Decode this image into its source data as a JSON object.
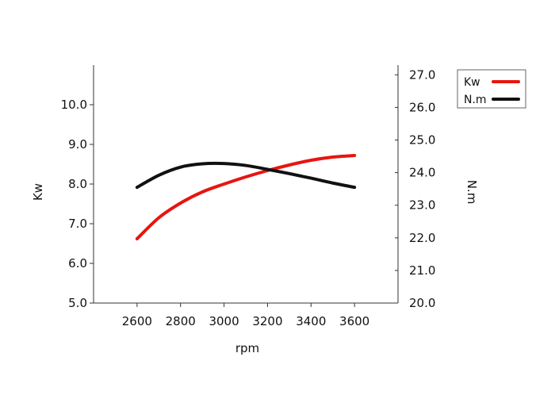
{
  "chart_data": {
    "type": "line",
    "xlabel": "rpm",
    "ylabel": "Kw",
    "y2label": "N.m",
    "x_ticks": [
      2600,
      2800,
      3000,
      3200,
      3400,
      3600
    ],
    "xlim": [
      2400,
      3800
    ],
    "y_ticks": [
      "5.0",
      "6.0",
      "7.0",
      "8.0",
      "9.0",
      "10.0"
    ],
    "ylim": [
      5.0,
      11.0
    ],
    "y2_ticks": [
      "20.0",
      "21.0",
      "22.0",
      "23.0",
      "24.0",
      "25.0",
      "26.0",
      "27.0"
    ],
    "y2lim": [
      20.0,
      27.3
    ],
    "legend_position": "top-right",
    "series": [
      {
        "name": "Kw",
        "axis": "left",
        "color": "#e8150f",
        "x": [
          2600,
          2700,
          2800,
          2900,
          3000,
          3100,
          3200,
          3300,
          3400,
          3500,
          3600
        ],
        "y": [
          6.62,
          7.15,
          7.52,
          7.8,
          8.0,
          8.18,
          8.34,
          8.48,
          8.6,
          8.68,
          8.72
        ]
      },
      {
        "name": "N.m",
        "axis": "right",
        "color": "#111111",
        "x": [
          2600,
          2700,
          2800,
          2900,
          3000,
          3100,
          3200,
          3300,
          3400,
          3500,
          3600
        ],
        "y": [
          23.55,
          23.92,
          24.17,
          24.27,
          24.28,
          24.22,
          24.1,
          23.97,
          23.83,
          23.68,
          23.55
        ]
      }
    ]
  }
}
